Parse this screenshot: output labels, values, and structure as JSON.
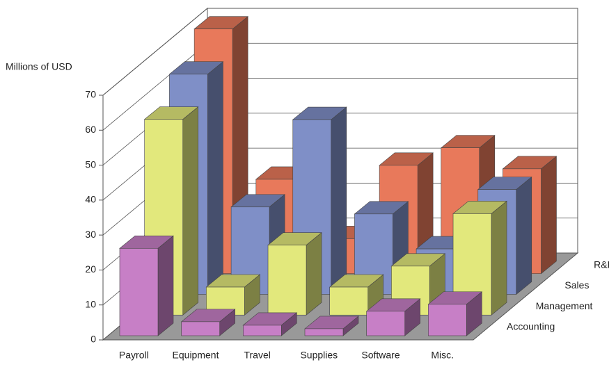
{
  "chart_data": {
    "type": "bar3d",
    "y_label": "Millions of USD",
    "categories": [
      "Payroll",
      "Equipment",
      "Travel",
      "Supplies",
      "Software",
      "Misc."
    ],
    "series": [
      {
        "name": "Accounting",
        "color": "#c77fc6",
        "values": [
          25,
          4,
          3,
          2,
          7,
          9
        ]
      },
      {
        "name": "Management",
        "color": "#e2e87c",
        "values": [
          56,
          8,
          20,
          8,
          14,
          29
        ]
      },
      {
        "name": "Sales",
        "color": "#7f8fc7",
        "values": [
          63,
          25,
          50,
          23,
          13,
          30
        ]
      },
      {
        "name": "R&D",
        "color": "#e8795b",
        "values": [
          70,
          27,
          10,
          31,
          36,
          30
        ]
      }
    ],
    "ylim": [
      0,
      70
    ],
    "yticks": [
      0,
      10,
      20,
      30,
      40,
      50,
      60,
      70
    ],
    "grid": true
  }
}
